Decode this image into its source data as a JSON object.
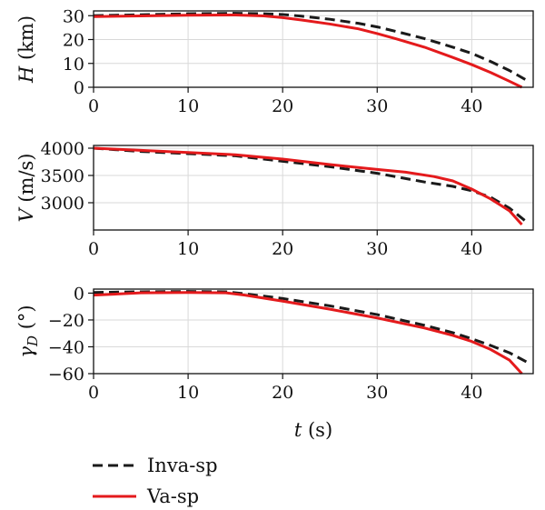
{
  "chart_data": [
    {
      "type": "line",
      "ylabel_italic": "H",
      "ylabel_unit": "(km)",
      "xlim": [
        0,
        46.5
      ],
      "ylim": [
        0,
        32
      ],
      "xticks": [
        0,
        10,
        20,
        30,
        40
      ],
      "xtick_labels": [
        "0",
        "10",
        "20",
        "30",
        "40"
      ],
      "yticks": [
        0,
        10,
        20,
        30
      ],
      "ytick_labels": [
        "0",
        "10",
        "20",
        "30"
      ],
      "grid": true,
      "series": [
        {
          "name": "Inva-sp",
          "style": "dashed",
          "color": "#1a1a1a",
          "x": [
            0,
            5,
            10,
            15,
            18,
            20,
            22,
            25,
            28,
            30,
            32,
            35,
            38,
            40,
            42,
            44,
            46
          ],
          "y": [
            30,
            30.4,
            30.8,
            31.0,
            30.8,
            30.5,
            29.8,
            28.5,
            26.8,
            25.3,
            23.4,
            20.4,
            16.8,
            14.2,
            10.8,
            7.0,
            2.5
          ]
        },
        {
          "name": "Va-sp",
          "style": "solid",
          "color": "#e41a1c",
          "x": [
            0,
            5,
            10,
            15,
            18,
            20,
            22,
            25,
            28,
            30,
            32,
            35,
            38,
            40,
            42,
            44,
            45.3
          ],
          "y": [
            29.6,
            29.9,
            30.2,
            30.3,
            29.9,
            29.2,
            28.2,
            26.5,
            24.5,
            22.5,
            20.3,
            16.8,
            12.5,
            9.5,
            6.2,
            2.5,
            0
          ]
        }
      ]
    },
    {
      "type": "line",
      "ylabel_italic": "V",
      "ylabel_unit": "(m/s)",
      "xlim": [
        0,
        46.5
      ],
      "ylim": [
        2500,
        4050
      ],
      "xticks": [
        0,
        10,
        20,
        30,
        40
      ],
      "xtick_labels": [
        "0",
        "10",
        "20",
        "30",
        "40"
      ],
      "yticks": [
        3000,
        3500,
        4000
      ],
      "ytick_labels": [
        "3000",
        "3500",
        "4000"
      ],
      "grid": true,
      "series": [
        {
          "name": "Inva-sp",
          "style": "dashed",
          "color": "#1a1a1a",
          "x": [
            0,
            5,
            10,
            15,
            20,
            25,
            30,
            35,
            38,
            40,
            42,
            44,
            46
          ],
          "y": [
            4000,
            3940,
            3900,
            3860,
            3760,
            3660,
            3540,
            3380,
            3300,
            3220,
            3100,
            2900,
            2620
          ]
        },
        {
          "name": "Va-sp",
          "style": "solid",
          "color": "#e41a1c",
          "x": [
            0,
            5,
            10,
            15,
            20,
            25,
            30,
            33,
            36,
            38,
            40,
            42,
            43,
            44,
            45.3
          ],
          "y": [
            4000,
            3960,
            3920,
            3880,
            3800,
            3700,
            3610,
            3560,
            3480,
            3400,
            3250,
            3070,
            2960,
            2850,
            2600
          ]
        }
      ]
    },
    {
      "type": "line",
      "ylabel_italic": "γ",
      "ylabel_sub": "D",
      "ylabel_unit": "(°)",
      "xlim": [
        0,
        46.5
      ],
      "ylim": [
        -60,
        3
      ],
      "xticks": [
        0,
        10,
        20,
        30,
        40
      ],
      "xtick_labels": [
        "0",
        "10",
        "20",
        "30",
        "40"
      ],
      "yticks": [
        0,
        -20,
        -40,
        -60
      ],
      "ytick_labels": [
        "0",
        "−20",
        "−40",
        "−60"
      ],
      "grid": true,
      "xlabel_italic": "t",
      "xlabel_unit": "(s)",
      "series": [
        {
          "name": "Inva-sp",
          "style": "dashed",
          "color": "#1a1a1a",
          "x": [
            0,
            5,
            10,
            14,
            16,
            20,
            25,
            30,
            35,
            38,
            40,
            42,
            44,
            46
          ],
          "y": [
            0.5,
            1.0,
            1.2,
            1.0,
            -0.5,
            -4,
            -9.5,
            -16,
            -24,
            -29.5,
            -34,
            -39,
            -44.5,
            -52
          ]
        },
        {
          "name": "Va-sp",
          "style": "solid",
          "color": "#e41a1c",
          "x": [
            0,
            3,
            5,
            10,
            14,
            16,
            20,
            25,
            30,
            35,
            38,
            40,
            42,
            44,
            45.3
          ],
          "y": [
            -1.5,
            -0.5,
            0.2,
            0.5,
            0.2,
            -1.5,
            -6,
            -12,
            -18.5,
            -26,
            -31.5,
            -36,
            -42,
            -50,
            -60
          ]
        }
      ]
    }
  ],
  "legend": {
    "placement": "bottom-left",
    "entries": [
      {
        "label": "Inva-sp",
        "style": "dashed",
        "color": "#1a1a1a"
      },
      {
        "label": "Va-sp",
        "style": "solid",
        "color": "#e41a1c"
      }
    ]
  }
}
